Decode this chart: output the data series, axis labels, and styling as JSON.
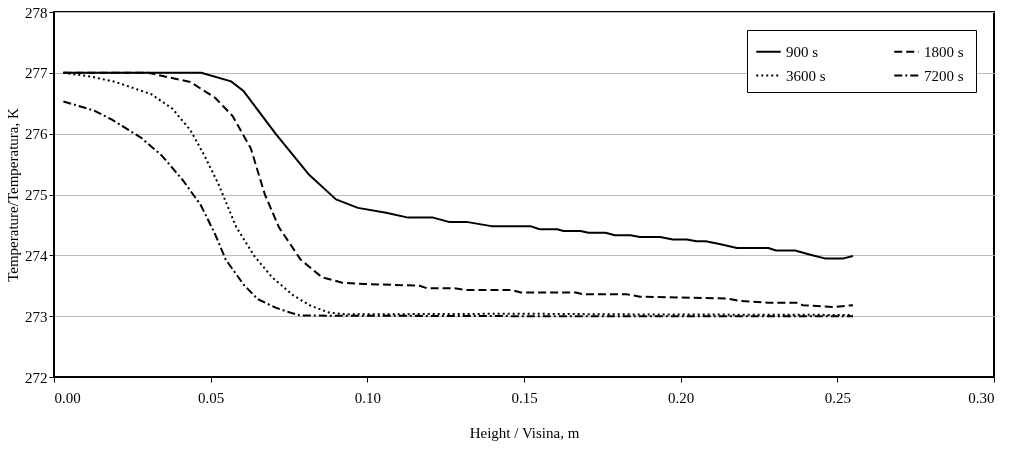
{
  "chart_data": {
    "type": "line",
    "xlabel": "Height / Visina, m",
    "ylabel": "Temperature/Temperatura, K",
    "xlim": [
      0,
      0.3
    ],
    "xticks": [
      {
        "value": 0,
        "label": "0.00"
      },
      {
        "value": 0.05,
        "label": "0.05"
      },
      {
        "value": 0.1,
        "label": "0.10"
      },
      {
        "value": 0.15,
        "label": "0.15"
      },
      {
        "value": 0.2,
        "label": "0.20"
      },
      {
        "value": 0.25,
        "label": "0.25"
      },
      {
        "value": 0.3,
        "label": "0.30"
      }
    ],
    "ylim": [
      272,
      278
    ],
    "yticks": [
      272,
      273,
      274,
      275,
      276,
      277,
      278
    ],
    "grid": "y",
    "legend": "top right",
    "marker": "none",
    "series": [
      {
        "name": "900 s",
        "color": "#000000",
        "line_style": "solid",
        "x": [
          0.003,
          0.047,
          0.0565,
          0.0605,
          0.0707,
          0.0815,
          0.09,
          0.097,
          0.106,
          0.113,
          0.121,
          0.126,
          0.1316,
          0.1396,
          0.152,
          0.155,
          0.1606,
          0.1626,
          0.168,
          0.1706,
          0.176,
          0.179,
          0.184,
          0.187,
          0.1935,
          0.1975,
          0.202,
          0.205,
          0.208,
          0.212,
          0.218,
          0.228,
          0.2304,
          0.2365,
          0.242,
          0.246,
          0.252,
          0.255
        ],
        "values": [
          277,
          277,
          276.86,
          276.7,
          276.0,
          275.32,
          274.92,
          274.78,
          274.7,
          274.62,
          274.62,
          274.55,
          274.55,
          274.48,
          274.48,
          274.43,
          274.43,
          274.4,
          274.4,
          274.37,
          274.37,
          274.33,
          274.33,
          274.3,
          274.3,
          274.26,
          274.26,
          274.23,
          274.23,
          274.19,
          274.12,
          274.12,
          274.08,
          274.08,
          274.0,
          273.95,
          273.95,
          273.99
        ]
      },
      {
        "name": "1800  s",
        "color": "#000000",
        "line_style": "dashed",
        "x": [
          0.003,
          0.03,
          0.0435,
          0.0514,
          0.057,
          0.0628,
          0.0673,
          0.0718,
          0.0787,
          0.0855,
          0.092,
          0.099,
          0.1167,
          0.119,
          0.1275,
          0.1316,
          0.146,
          0.149,
          0.1665,
          0.169,
          0.1827,
          0.187,
          0.215,
          0.219,
          0.228,
          0.2375,
          0.239,
          0.2487,
          0.255
        ],
        "values": [
          277,
          277,
          276.85,
          276.59,
          276.29,
          275.76,
          275.0,
          274.46,
          273.93,
          273.64,
          273.55,
          273.53,
          273.5,
          273.46,
          273.46,
          273.43,
          273.43,
          273.39,
          273.39,
          273.36,
          273.36,
          273.32,
          273.29,
          273.25,
          273.22,
          273.22,
          273.18,
          273.15,
          273.18
        ]
      },
      {
        "name": "3600  s",
        "color": "#000000",
        "line_style": "dotted",
        "x": [
          0.003,
          0.0117,
          0.0196,
          0.031,
          0.0378,
          0.0435,
          0.048,
          0.0525,
          0.0582,
          0.0639,
          0.0696,
          0.0764,
          0.082,
          0.0877,
          0.0934,
          0.15,
          0.18,
          0.255
        ],
        "values": [
          277,
          276.94,
          276.85,
          276.65,
          276.41,
          276.06,
          275.64,
          275.17,
          274.46,
          273.99,
          273.64,
          273.34,
          273.17,
          273.06,
          273.03,
          273.04,
          273.03,
          273.02
        ]
      },
      {
        "name": "7200  s",
        "color": "#000000",
        "line_style": "dashdot",
        "x": [
          0.003,
          0.0128,
          0.0185,
          0.0276,
          0.0344,
          0.0412,
          0.0469,
          0.0514,
          0.0548,
          0.0605,
          0.065,
          0.0707,
          0.0753,
          0.0787,
          0.15,
          0.255
        ],
        "values": [
          276.53,
          276.38,
          276.23,
          275.94,
          275.64,
          275.23,
          274.82,
          274.35,
          273.93,
          273.52,
          273.28,
          273.14,
          273.06,
          273.01,
          273.0,
          273.0
        ]
      }
    ]
  }
}
